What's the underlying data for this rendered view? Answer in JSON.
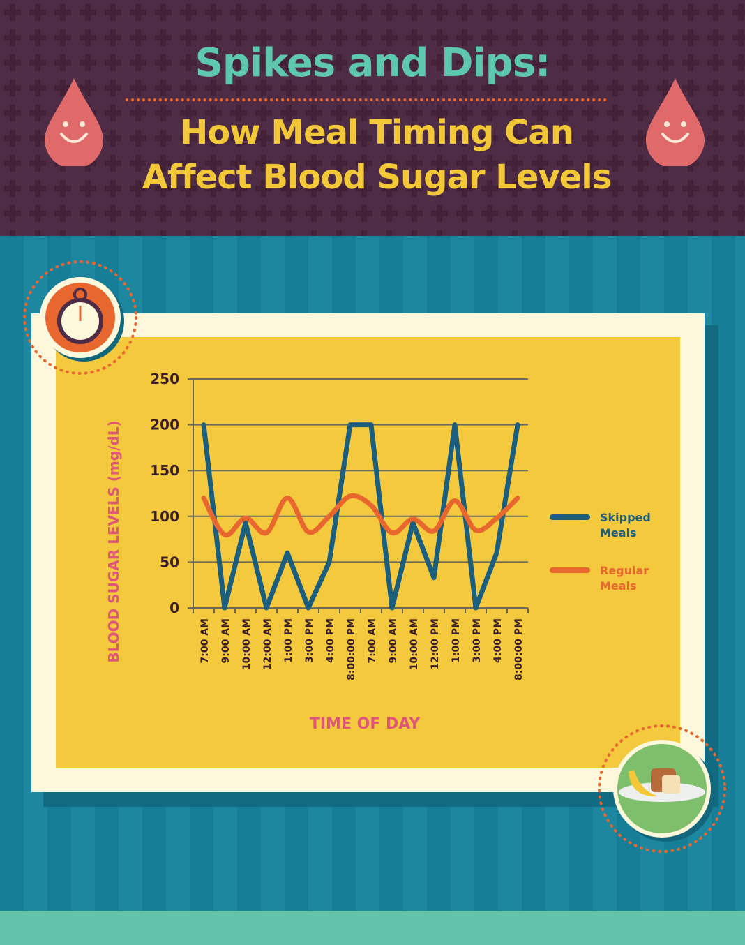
{
  "header": {
    "title": "Spikes and Dips:",
    "subtitle_line1": "How Meal Timing Can",
    "subtitle_line2": "Affect Blood Sugar Levels"
  },
  "icons": [
    "blood-drop-smiley-icon",
    "stopwatch-icon",
    "meal-plate-icon"
  ],
  "colors": {
    "header_bg": "#4f2c45",
    "title": "#5ec8ae",
    "subtitle": "#f2c839",
    "main_bg": "#1a7f99",
    "chart_bg": "#f4c93d",
    "skipped": "#1c5e7e",
    "regular": "#e8672e",
    "axis_label": "#e0567a"
  },
  "chart_data": {
    "type": "line",
    "title": "",
    "xlabel": "TIME OF DAY",
    "ylabel": "BLOOD SUGAR LEVELS (mg/dL)",
    "ylim": [
      0,
      250
    ],
    "yticks": [
      "0",
      "50",
      "100",
      "150",
      "200",
      "250"
    ],
    "grid": true,
    "legend_position": "right",
    "categories": [
      "7:00 AM",
      "9:00 AM",
      "10:00 AM",
      "12:00 AM",
      "1:00 PM",
      "3:00 PM",
      "4:00 PM",
      "8:00:00 PM",
      "7:00 AM",
      "9:00 AM",
      "10:00 AM",
      "12:00 PM",
      "1:00 PM",
      "3:00 PM",
      "4:00 PM",
      "8:00:00 PM"
    ],
    "series": [
      {
        "name": "Skipped Meals",
        "color": "#1c5e7e",
        "values": [
          200,
          0,
          93,
          0,
          60,
          0,
          50,
          200,
          200,
          0,
          93,
          33,
          200,
          0,
          60,
          200
        ]
      },
      {
        "name": "Regular Meals",
        "color": "#e8672e",
        "values": [
          120,
          80,
          98,
          82,
          120,
          83,
          100,
          122,
          112,
          82,
          97,
          84,
          117,
          85,
          98,
          120
        ]
      }
    ]
  }
}
